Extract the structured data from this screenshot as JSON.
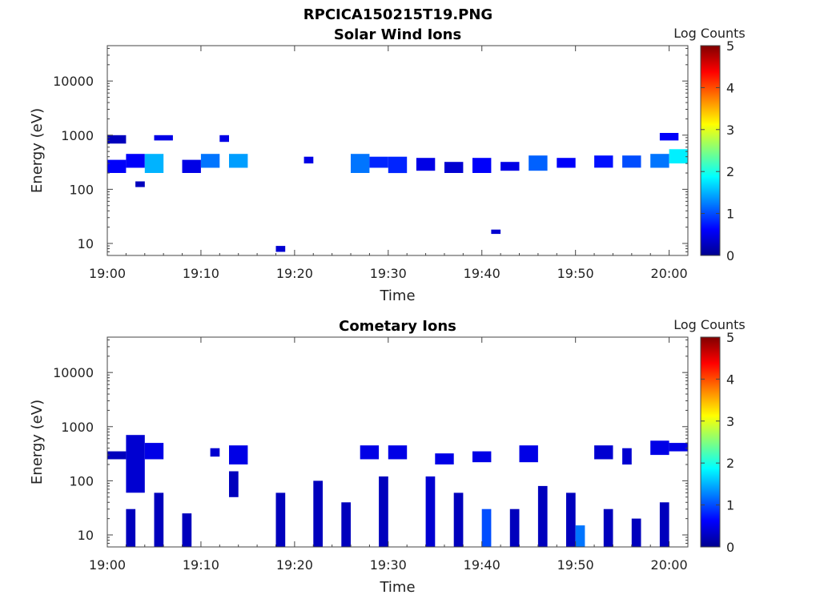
{
  "figure_title": "RPCICA150215T19.PNG",
  "chart_data": [
    {
      "type": "heatmap",
      "title": "Solar Wind Ions",
      "xlabel": "Time",
      "ylabel": "Energy (eV)",
      "x_range": [
        "19:00",
        "20:02"
      ],
      "x_ticks": [
        "19:00",
        "19:10",
        "19:20",
        "19:30",
        "19:40",
        "19:50",
        "20:00"
      ],
      "y_scale": "log",
      "y_range": [
        6,
        45000
      ],
      "y_ticks": [
        10,
        100,
        1000,
        10000
      ],
      "y_tick_labels": [
        "10",
        "100",
        "1000",
        "10000"
      ],
      "colorbar": {
        "label": "Log Counts",
        "min": 0,
        "max": 5,
        "ticks": [
          "0",
          "1",
          "2",
          "3",
          "4",
          "5"
        ],
        "colormap": "jet"
      },
      "background": "#ffffff",
      "patches": [
        {
          "t0": "19:00",
          "t1": "19:02",
          "e0": 700,
          "e1": 1000,
          "level": 0.3
        },
        {
          "t0": "19:00",
          "t1": "19:02",
          "e0": 200,
          "e1": 350,
          "level": 0.6
        },
        {
          "t0": "19:02",
          "t1": "19:04",
          "e0": 250,
          "e1": 450,
          "level": 0.6
        },
        {
          "t0": "19:03",
          "t1": "19:04",
          "e0": 110,
          "e1": 140,
          "level": 0.3
        },
        {
          "t0": "19:04",
          "t1": "19:06",
          "e0": 200,
          "e1": 450,
          "level": 1.5
        },
        {
          "t0": "19:05",
          "t1": "19:07",
          "e0": 800,
          "e1": 1000,
          "level": 0.5
        },
        {
          "t0": "19:08",
          "t1": "19:10",
          "e0": 200,
          "e1": 350,
          "level": 0.5
        },
        {
          "t0": "19:10",
          "t1": "19:12",
          "e0": 250,
          "e1": 450,
          "level": 1.2
        },
        {
          "t0": "19:12",
          "t1": "19:13",
          "e0": 750,
          "e1": 1000,
          "level": 0.5
        },
        {
          "t0": "19:13",
          "t1": "19:15",
          "e0": 250,
          "e1": 450,
          "level": 1.4
        },
        {
          "t0": "19:18",
          "t1": "19:19",
          "e0": 7,
          "e1": 9,
          "level": 0.4
        },
        {
          "t0": "19:21",
          "t1": "19:22",
          "e0": 300,
          "e1": 400,
          "level": 0.5
        },
        {
          "t0": "19:26",
          "t1": "19:28",
          "e0": 200,
          "e1": 450,
          "level": 1.2
        },
        {
          "t0": "19:28",
          "t1": "19:30",
          "e0": 250,
          "e1": 400,
          "level": 0.8
        },
        {
          "t0": "19:30",
          "t1": "19:32",
          "e0": 200,
          "e1": 400,
          "level": 0.8
        },
        {
          "t0": "19:33",
          "t1": "19:35",
          "e0": 220,
          "e1": 380,
          "level": 0.5
        },
        {
          "t0": "19:36",
          "t1": "19:38",
          "e0": 200,
          "e1": 320,
          "level": 0.4
        },
        {
          "t0": "19:39",
          "t1": "19:41",
          "e0": 200,
          "e1": 380,
          "level": 0.6
        },
        {
          "t0": "19:41",
          "t1": "19:42",
          "e0": 15,
          "e1": 18,
          "level": 0.4
        },
        {
          "t0": "19:42",
          "t1": "19:44",
          "e0": 220,
          "e1": 320,
          "level": 0.5
        },
        {
          "t0": "19:45",
          "t1": "19:47",
          "e0": 220,
          "e1": 420,
          "level": 1.1
        },
        {
          "t0": "19:48",
          "t1": "19:50",
          "e0": 250,
          "e1": 380,
          "level": 0.6
        },
        {
          "t0": "19:52",
          "t1": "19:54",
          "e0": 250,
          "e1": 420,
          "level": 0.7
        },
        {
          "t0": "19:55",
          "t1": "19:57",
          "e0": 250,
          "e1": 420,
          "level": 1.0
        },
        {
          "t0": "19:58",
          "t1": "20:00",
          "e0": 250,
          "e1": 450,
          "level": 1.2
        },
        {
          "t0": "20:00",
          "t1": "20:02",
          "e0": 300,
          "e1": 550,
          "level": 1.8
        },
        {
          "t0": "19:59",
          "t1": "20:01",
          "e0": 800,
          "e1": 1100,
          "level": 0.6
        }
      ]
    },
    {
      "type": "heatmap",
      "title": "Cometary Ions",
      "xlabel": "Time",
      "ylabel": "Energy (eV)",
      "x_range": [
        "19:00",
        "20:02"
      ],
      "x_ticks": [
        "19:00",
        "19:10",
        "19:20",
        "19:30",
        "19:40",
        "19:50",
        "20:00"
      ],
      "y_scale": "log",
      "y_range": [
        6,
        45000
      ],
      "y_ticks": [
        10,
        100,
        1000,
        10000
      ],
      "y_tick_labels": [
        "10",
        "100",
        "1000",
        "10000"
      ],
      "colorbar": {
        "label": "Log Counts",
        "min": 0,
        "max": 5,
        "ticks": [
          "0",
          "1",
          "2",
          "3",
          "4",
          "5"
        ],
        "colormap": "jet"
      },
      "background": "#ffffff",
      "patches": [
        {
          "t0": "19:00",
          "t1": "19:02",
          "e0": 250,
          "e1": 350,
          "level": 0.3
        },
        {
          "t0": "19:02",
          "t1": "19:04",
          "e0": 60,
          "e1": 700,
          "level": 0.4
        },
        {
          "t0": "19:02",
          "t1": "19:03",
          "e0": 6,
          "e1": 30,
          "level": 0.3
        },
        {
          "t0": "19:04",
          "t1": "19:06",
          "e0": 250,
          "e1": 500,
          "level": 0.5
        },
        {
          "t0": "19:05",
          "t1": "19:06",
          "e0": 6,
          "e1": 60,
          "level": 0.3
        },
        {
          "t0": "19:08",
          "t1": "19:09",
          "e0": 6,
          "e1": 25,
          "level": 0.3
        },
        {
          "t0": "19:11",
          "t1": "19:12",
          "e0": 280,
          "e1": 400,
          "level": 0.4
        },
        {
          "t0": "19:13",
          "t1": "19:15",
          "e0": 200,
          "e1": 450,
          "level": 0.5
        },
        {
          "t0": "19:13",
          "t1": "19:14",
          "e0": 50,
          "e1": 150,
          "level": 0.3
        },
        {
          "t0": "19:18",
          "t1": "19:19",
          "e0": 6,
          "e1": 60,
          "level": 0.3
        },
        {
          "t0": "19:22",
          "t1": "19:23",
          "e0": 6,
          "e1": 100,
          "level": 0.3
        },
        {
          "t0": "19:25",
          "t1": "19:26",
          "e0": 6,
          "e1": 40,
          "level": 0.3
        },
        {
          "t0": "19:27",
          "t1": "19:29",
          "e0": 250,
          "e1": 450,
          "level": 0.5
        },
        {
          "t0": "19:29",
          "t1": "19:30",
          "e0": 6,
          "e1": 120,
          "level": 0.3
        },
        {
          "t0": "19:30",
          "t1": "19:32",
          "e0": 250,
          "e1": 450,
          "level": 0.5
        },
        {
          "t0": "19:34",
          "t1": "19:35",
          "e0": 6,
          "e1": 120,
          "level": 0.4
        },
        {
          "t0": "19:35",
          "t1": "19:37",
          "e0": 200,
          "e1": 320,
          "level": 0.5
        },
        {
          "t0": "19:37",
          "t1": "19:38",
          "e0": 6,
          "e1": 60,
          "level": 0.3
        },
        {
          "t0": "19:39",
          "t1": "19:41",
          "e0": 220,
          "e1": 350,
          "level": 0.5
        },
        {
          "t0": "19:40",
          "t1": "19:41",
          "e0": 6,
          "e1": 30,
          "level": 1.0
        },
        {
          "t0": "19:43",
          "t1": "19:44",
          "e0": 6,
          "e1": 30,
          "level": 0.3
        },
        {
          "t0": "19:44",
          "t1": "19:46",
          "e0": 220,
          "e1": 450,
          "level": 0.5
        },
        {
          "t0": "19:46",
          "t1": "19:47",
          "e0": 6,
          "e1": 80,
          "level": 0.3
        },
        {
          "t0": "19:49",
          "t1": "19:50",
          "e0": 6,
          "e1": 60,
          "level": 0.3
        },
        {
          "t0": "19:50",
          "t1": "19:51",
          "e0": 6,
          "e1": 15,
          "level": 1.2
        },
        {
          "t0": "19:52",
          "t1": "19:54",
          "e0": 250,
          "e1": 450,
          "level": 0.4
        },
        {
          "t0": "19:53",
          "t1": "19:54",
          "e0": 6,
          "e1": 30,
          "level": 0.3
        },
        {
          "t0": "19:55",
          "t1": "19:56",
          "e0": 200,
          "e1": 400,
          "level": 0.4
        },
        {
          "t0": "19:56",
          "t1": "19:57",
          "e0": 6,
          "e1": 20,
          "level": 0.3
        },
        {
          "t0": "19:58",
          "t1": "20:00",
          "e0": 300,
          "e1": 550,
          "level": 0.5
        },
        {
          "t0": "19:59",
          "t1": "20:00",
          "e0": 6,
          "e1": 40,
          "level": 0.3
        },
        {
          "t0": "20:00",
          "t1": "20:02",
          "e0": 350,
          "e1": 500,
          "level": 0.5
        }
      ]
    }
  ]
}
